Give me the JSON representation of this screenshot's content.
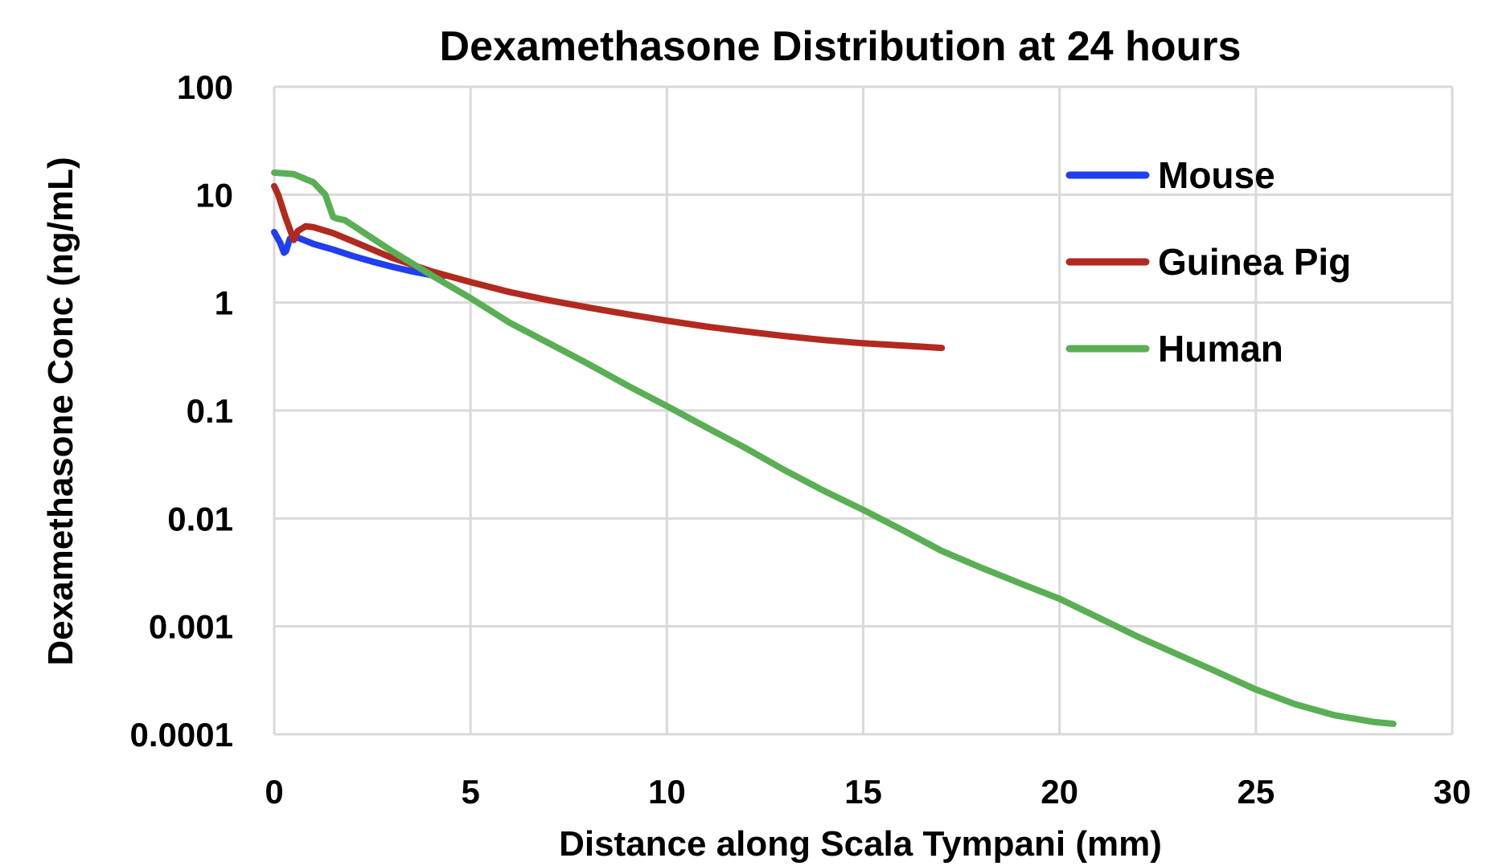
{
  "chart_data": {
    "type": "line",
    "title": "Dexamethasone Distribution at 24 hours",
    "xlabel": "Distance along Scala Tympani (mm)",
    "ylabel": "Dexamethasone Conc  (ng/mL)",
    "x_scale": "linear",
    "y_scale": "log",
    "xlim": [
      0,
      30
    ],
    "ylim": [
      0.0001,
      100
    ],
    "x_ticks": [
      0,
      5,
      10,
      15,
      20,
      25,
      30
    ],
    "x_tick_labels": [
      "0",
      "5",
      "10",
      "15",
      "20",
      "25",
      "30"
    ],
    "y_ticks": [
      0.0001,
      0.001,
      0.01,
      0.1,
      1,
      10,
      100
    ],
    "y_tick_labels": [
      "0.0001",
      "0.001",
      "0.01",
      "0.1",
      "1",
      "10",
      "100"
    ],
    "grid": true,
    "legend_position": "top-right",
    "series": [
      {
        "name": "Mouse",
        "color": "#1f3ff0",
        "x": [
          0,
          0.15,
          0.25,
          0.3,
          0.4,
          0.6,
          1.0,
          1.5,
          2.0,
          2.5,
          3.0,
          3.5,
          4.0,
          4.3
        ],
        "y": [
          4.5,
          3.6,
          2.9,
          3.0,
          3.9,
          4.0,
          3.5,
          3.1,
          2.7,
          2.4,
          2.15,
          1.95,
          1.8,
          1.75
        ]
      },
      {
        "name": "Guinea Pig",
        "color": "#b22a1f",
        "x": [
          0,
          0.1,
          0.3,
          0.5,
          0.6,
          0.8,
          1.0,
          1.5,
          2.0,
          3.0,
          4.0,
          5.0,
          6.0,
          7.0,
          8.0,
          9.0,
          10.0,
          11.0,
          12.0,
          13.0,
          14.0,
          15.0,
          16.0,
          17.0
        ],
        "y": [
          12,
          10,
          6,
          3.8,
          4.6,
          5.1,
          5.0,
          4.4,
          3.7,
          2.6,
          1.95,
          1.55,
          1.25,
          1.05,
          0.9,
          0.78,
          0.68,
          0.6,
          0.54,
          0.49,
          0.45,
          0.42,
          0.4,
          0.38
        ]
      },
      {
        "name": "Human",
        "color": "#5aaf55",
        "x": [
          0,
          0.5,
          1.0,
          1.3,
          1.5,
          1.6,
          1.8,
          2.0,
          3.0,
          4.0,
          5.0,
          6.0,
          7.0,
          8.0,
          9.0,
          10.0,
          11.0,
          12.0,
          13.0,
          14.0,
          15.0,
          16.0,
          17.0,
          18.0,
          19.0,
          20.0,
          21.0,
          22.0,
          23.0,
          24.0,
          25.0,
          26.0,
          27.0,
          28.0,
          28.5
        ],
        "y": [
          16,
          15.5,
          13,
          10,
          6.2,
          6.0,
          5.8,
          5.2,
          3.0,
          1.8,
          1.1,
          0.65,
          0.42,
          0.27,
          0.17,
          0.11,
          0.07,
          0.045,
          0.028,
          0.018,
          0.012,
          0.0078,
          0.005,
          0.0035,
          0.0025,
          0.0018,
          0.0012,
          0.0008,
          0.00055,
          0.00038,
          0.00026,
          0.00019,
          0.00015,
          0.00013,
          0.000125
        ]
      }
    ]
  }
}
